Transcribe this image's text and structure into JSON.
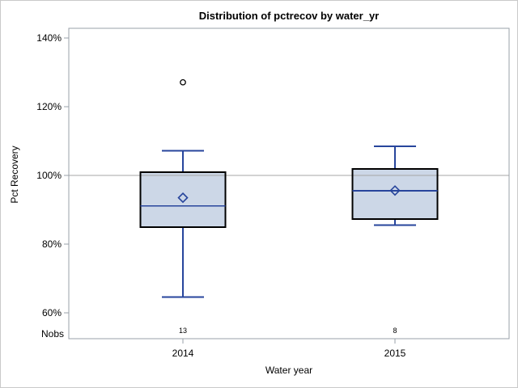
{
  "window": {
    "background": "#ffffff",
    "border_color": "#c9c9c9"
  },
  "chart_data": {
    "type": "boxplot",
    "title": "Distribution of pctrecov by water_yr",
    "xlabel": "Water year",
    "ylabel": "Pct Recovery",
    "nobs_row_label": "Nobs",
    "categories": [
      "2014",
      "2015"
    ],
    "yticks": {
      "values": [
        140,
        120,
        100,
        80,
        60
      ],
      "labels": [
        "140%",
        "120%",
        "100%",
        "80%",
        "60%"
      ]
    },
    "ylim": [
      52.5,
      142.8
    ],
    "reference_line": 100,
    "grid": "off",
    "legend": "none",
    "series": [
      {
        "category": "2014",
        "nobs": "13",
        "whisker_low": 64.6,
        "q1": 84.9,
        "median": 91.1,
        "mean": 93.5,
        "q3": 100.9,
        "whisker_high": 107.2,
        "outliers": [
          127.1
        ]
      },
      {
        "category": "2015",
        "nobs": "8",
        "whisker_low": 85.5,
        "q1": 87.3,
        "median": 95.5,
        "mean": 95.6,
        "q3": 101.9,
        "whisker_high": 108.5,
        "outliers": []
      }
    ],
    "colors": {
      "box_fill": "#ccd7e7",
      "box_border": "#000000",
      "whisker_median_mean": "#27459c",
      "outlier": "#000000",
      "frame": "#9aa0a8",
      "reference_line": "#a6a6a6",
      "text": "#000000"
    }
  }
}
